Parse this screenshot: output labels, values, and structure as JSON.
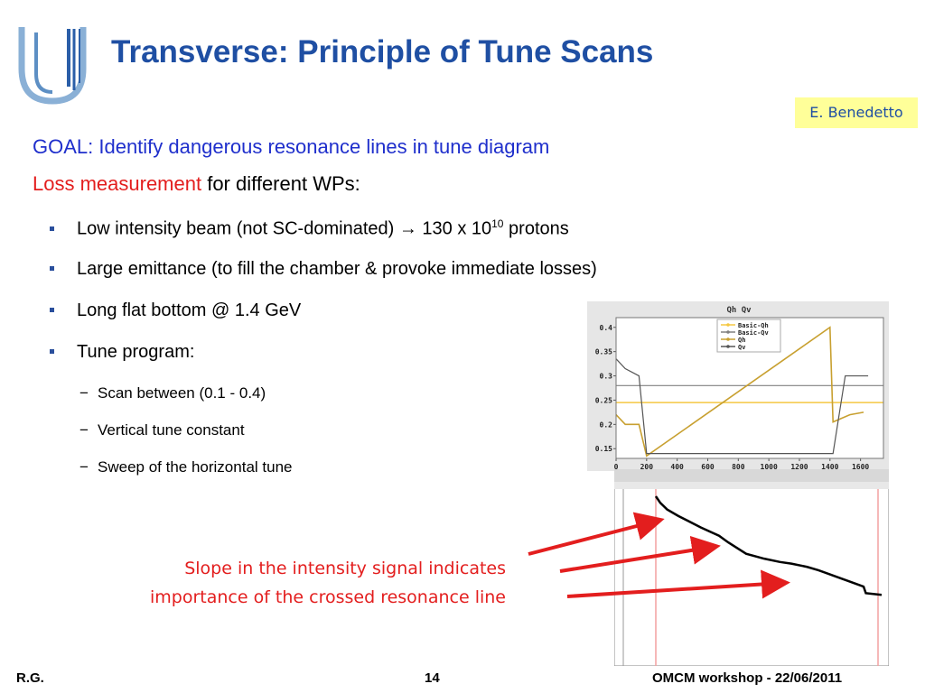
{
  "header": {
    "title": "Transverse: Principle of Tune Scans",
    "author": "E. Benedetto"
  },
  "goal": "GOAL: Identify dangerous resonance lines in tune diagram",
  "loss": {
    "red": "Loss measurement",
    "rest": " for different WPs:"
  },
  "bullets": [
    {
      "text": "Low intensity beam (not SC-dominated) → 130 x 10",
      "sup": "10",
      "after": " protons"
    },
    {
      "text": "Large emittance (to fill the chamber & provoke immediate losses)"
    },
    {
      "text": "Long flat bottom @ 1.4 GeV"
    },
    {
      "text": "Tune program:"
    }
  ],
  "subbullets": [
    "Scan between (0.1 - 0.4)",
    "Vertical tune constant",
    "Sweep of the horizontal tune"
  ],
  "note": {
    "line1": "Slope in the intensity signal indicates",
    "line2": "importance of the crossed resonance line"
  },
  "footer": {
    "left": "R.G.",
    "page": "14",
    "right": "OMCM workshop - 22/06/2011"
  },
  "colors": {
    "title": "#1f4fa3",
    "goal": "#1f2fcc",
    "accent_red": "#e31e1e",
    "author_bg": "#ffff99",
    "qh_line": "#c8a030",
    "basic_qh": "#f5c842",
    "qv_line": "#808080"
  },
  "chart_data": [
    {
      "type": "line",
      "title": "Qh Qv",
      "x_ticks": [
        "0",
        "200",
        "400",
        "600",
        "800",
        "1000",
        "1200",
        "1400",
        "1600"
      ],
      "y_ticks": [
        "0.15",
        "0.2",
        "0.25",
        "0.3",
        "0.35",
        "0.4"
      ],
      "xlim": [
        0,
        1750
      ],
      "ylim": [
        0.13,
        0.42
      ],
      "legend": [
        "Basic-Qh",
        "Basic-Qv",
        "Qh",
        "Qv"
      ],
      "legend_position": "top-right",
      "grid": false,
      "series": [
        {
          "name": "Basic-Qh",
          "x": [
            0,
            1750
          ],
          "y": [
            0.245,
            0.245
          ]
        },
        {
          "name": "Basic-Qv",
          "x": [
            0,
            1750
          ],
          "y": [
            0.28,
            0.28
          ]
        },
        {
          "name": "Qh",
          "x": [
            0,
            60,
            150,
            200,
            1400,
            1420,
            1530,
            1620
          ],
          "y": [
            0.22,
            0.2,
            0.2,
            0.135,
            0.4,
            0.205,
            0.22,
            0.225
          ]
        },
        {
          "name": "Qv",
          "x": [
            0,
            60,
            150,
            200,
            1420,
            1500,
            1600,
            1650
          ],
          "y": [
            0.335,
            0.315,
            0.3,
            0.14,
            0.14,
            0.3,
            0.3,
            0.3
          ]
        }
      ]
    },
    {
      "type": "line",
      "title": "",
      "series": [
        {
          "x": [
            0,
            2,
            5,
            10,
            20,
            28,
            32,
            40,
            48,
            55,
            60,
            67,
            72,
            80,
            88,
            92,
            93,
            100
          ],
          "y": [
            100,
            96,
            92,
            88,
            81,
            76,
            72,
            65,
            62,
            60,
            59,
            57,
            55,
            51,
            47,
            45,
            41,
            40
          ]
        }
      ]
    }
  ]
}
